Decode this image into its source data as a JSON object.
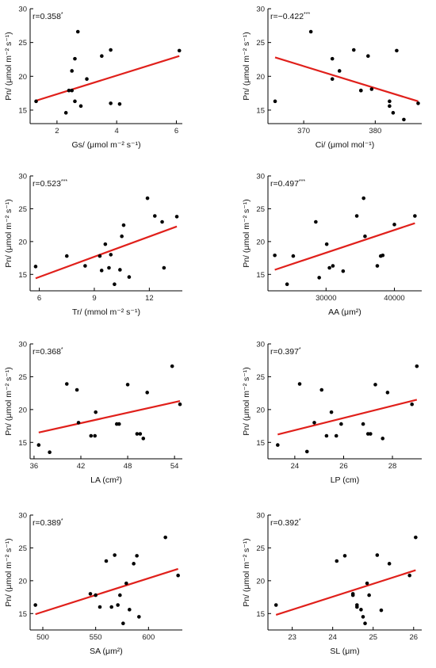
{
  "chart_data": [
    {
      "type": "scatter",
      "r_label": "r=0.358",
      "r_sig": "*",
      "xlabel": "Gs/ (μmol m⁻² s⁻¹)",
      "ylabel": "Pn/ (μmol m⁻² s⁻¹)",
      "xlim": [
        1.1,
        6.2
      ],
      "ylim": [
        13,
        30
      ],
      "xticks": [
        2,
        4,
        6
      ],
      "yticks": [
        15,
        20,
        25,
        30
      ],
      "x": [
        1.3,
        2.3,
        2.4,
        2.5,
        2.5,
        2.6,
        2.6,
        2.7,
        2.8,
        3.0,
        3.5,
        3.8,
        3.8,
        4.1,
        6.1
      ],
      "y": [
        16.3,
        14.6,
        17.9,
        20.8,
        17.9,
        22.6,
        16.3,
        26.6,
        15.6,
        19.6,
        23.0,
        23.9,
        16.0,
        15.9,
        23.8
      ],
      "fit": [
        [
          1.3,
          16.4
        ],
        [
          6.1,
          23.0
        ]
      ],
      "series_color": "#e0201b"
    },
    {
      "type": "scatter",
      "r_label": "r=−0.422",
      "r_sig": "***",
      "xlabel": "Ci/ (μmol mol⁻¹)",
      "ylabel": "Pn/ (μmol m⁻² s⁻¹)",
      "xlim": [
        365,
        386.5
      ],
      "ylim": [
        13,
        30
      ],
      "xticks": [
        370,
        380
      ],
      "yticks": [
        15,
        20,
        25,
        30
      ],
      "x": [
        366,
        371,
        374,
        374,
        375,
        377,
        378,
        378,
        379,
        379.5,
        382,
        382,
        382.5,
        383,
        384,
        386
      ],
      "y": [
        16.3,
        26.6,
        22.6,
        19.6,
        20.8,
        23.9,
        17.9,
        17.9,
        23.0,
        18.1,
        16.3,
        15.6,
        14.6,
        23.8,
        13.6,
        16.0
      ],
      "fit": [
        [
          366,
          22.8
        ],
        [
          386,
          16.3
        ]
      ],
      "series_color": "#e0201b"
    },
    {
      "type": "scatter",
      "r_label": "r=0.523",
      "r_sig": "***",
      "xlabel": "Tr/ (mmol m⁻² s⁻¹)",
      "ylabel": "Pn/ (μmol m⁻² s⁻¹)",
      "xlim": [
        5.5,
        13.8
      ],
      "ylim": [
        12.5,
        30
      ],
      "xticks": [
        6,
        9,
        12
      ],
      "yticks": [
        15,
        20,
        25,
        30
      ],
      "x": [
        5.8,
        7.5,
        8.5,
        9.3,
        9.4,
        9.6,
        9.8,
        9.9,
        10.1,
        10.4,
        10.5,
        10.6,
        10.9,
        11.9,
        12.3,
        12.7,
        12.8,
        13.5
      ],
      "y": [
        16.2,
        17.8,
        16.3,
        17.8,
        15.6,
        19.6,
        16.0,
        18.0,
        13.5,
        15.7,
        20.8,
        22.5,
        14.6,
        26.6,
        23.9,
        23.0,
        16.0,
        23.8
      ],
      "fit": [
        [
          5.8,
          14.4
        ],
        [
          13.5,
          22.3
        ]
      ],
      "series_color": "#e0201b"
    },
    {
      "type": "scatter",
      "r_label": "r=0.497",
      "r_sig": "***",
      "xlabel": "AA (μm²)",
      "ylabel": "Pn/ (μmol m⁻² s⁻¹)",
      "xlim": [
        21500,
        44000
      ],
      "ylim": [
        12.5,
        30
      ],
      "xticks": [
        30000,
        40000
      ],
      "yticks": [
        15,
        20,
        25,
        30
      ],
      "x": [
        22500,
        24300,
        25200,
        28500,
        29000,
        30100,
        30500,
        31000,
        32500,
        34500,
        35500,
        35700,
        37500,
        38000,
        38300,
        40000,
        43000
      ],
      "y": [
        17.9,
        13.5,
        17.8,
        23.0,
        14.5,
        19.6,
        16.0,
        16.3,
        15.5,
        23.9,
        26.6,
        20.8,
        16.3,
        17.8,
        17.9,
        22.6,
        23.9
      ],
      "fit": [
        [
          22500,
          15.7
        ],
        [
          43000,
          22.8
        ]
      ],
      "series_color": "#e0201b"
    },
    {
      "type": "scatter",
      "r_label": "r=0.368",
      "r_sig": "*",
      "xlabel": "LA (cm²)",
      "ylabel": "Pn/ (μmol m⁻² s⁻¹)",
      "xlim": [
        35.5,
        55
      ],
      "ylim": [
        12.5,
        30
      ],
      "xticks": [
        36,
        42,
        48,
        54
      ],
      "yticks": [
        15,
        20,
        25,
        30
      ],
      "x": [
        36.6,
        38.0,
        40.2,
        41.5,
        41.7,
        43.3,
        43.8,
        43.9,
        46.6,
        46.9,
        48.0,
        49.2,
        49.6,
        50.0,
        50.5,
        53.7,
        54.7
      ],
      "y": [
        14.6,
        13.5,
        23.9,
        23.0,
        18.0,
        16.0,
        16.0,
        19.6,
        17.8,
        17.8,
        23.8,
        16.3,
        16.3,
        15.6,
        22.6,
        26.6,
        20.8
      ],
      "fit": [
        [
          36.6,
          16.5
        ],
        [
          54.7,
          21.3
        ]
      ],
      "series_color": "#e0201b"
    },
    {
      "type": "scatter",
      "r_label": "r=0.397",
      "r_sig": "*",
      "xlabel": "LP (cm)",
      "ylabel": "Pn/ (μmol m⁻² s⁻¹)",
      "xlim": [
        22.9,
        29.2
      ],
      "ylim": [
        12.5,
        30
      ],
      "xticks": [
        24,
        26,
        28
      ],
      "yticks": [
        15,
        20,
        25,
        30
      ],
      "x": [
        23.3,
        24.2,
        24.5,
        24.8,
        25.1,
        25.3,
        25.5,
        25.7,
        25.9,
        26.8,
        27.0,
        27.1,
        27.3,
        27.6,
        27.8,
        28.8,
        29.0
      ],
      "y": [
        14.6,
        23.9,
        13.6,
        18.0,
        23.0,
        16.0,
        19.6,
        16.0,
        17.8,
        17.8,
        16.3,
        16.3,
        23.8,
        15.6,
        22.6,
        20.8,
        26.6
      ],
      "fit": [
        [
          23.3,
          16.2
        ],
        [
          29.0,
          21.5
        ]
      ],
      "series_color": "#e0201b"
    },
    {
      "type": "scatter",
      "r_label": "r=0.389",
      "r_sig": "*",
      "xlabel": "SA (μm²)",
      "ylabel": "Pn/ (μmol m⁻² s⁻¹)",
      "xlim": [
        488,
        632
      ],
      "ylim": [
        12.5,
        30
      ],
      "xticks": [
        500,
        550,
        600
      ],
      "yticks": [
        15,
        20,
        25,
        30
      ],
      "x": [
        493,
        545,
        550,
        554,
        560,
        565,
        568,
        571,
        573,
        576,
        579,
        582,
        586,
        589,
        591,
        616,
        628
      ],
      "y": [
        16.3,
        18.0,
        17.8,
        16.0,
        23.0,
        16.0,
        23.9,
        16.3,
        17.8,
        13.5,
        19.6,
        15.6,
        22.6,
        23.8,
        14.5,
        26.6,
        20.8
      ],
      "fit": [
        [
          493,
          14.9
        ],
        [
          628,
          21.8
        ]
      ],
      "series_color": "#e0201b"
    },
    {
      "type": "scatter",
      "r_label": "r=0.392",
      "r_sig": "*",
      "xlabel": "SL (μm)",
      "ylabel": "Pn/ (μmol m⁻² s⁻¹)",
      "xlim": [
        22.4,
        26.2
      ],
      "ylim": [
        12.5,
        30
      ],
      "xticks": [
        23,
        24,
        25,
        26
      ],
      "yticks": [
        15,
        20,
        25,
        30
      ],
      "x": [
        22.6,
        24.1,
        24.3,
        24.5,
        24.5,
        24.6,
        24.6,
        24.7,
        24.75,
        24.8,
        24.85,
        24.9,
        25.1,
        25.2,
        25.4,
        25.9,
        26.05
      ],
      "y": [
        16.3,
        23.0,
        23.8,
        18.0,
        17.8,
        16.0,
        16.3,
        15.6,
        14.5,
        13.5,
        19.6,
        17.8,
        23.9,
        15.5,
        22.6,
        20.8,
        26.6
      ],
      "fit": [
        [
          22.6,
          14.8
        ],
        [
          26.05,
          21.6
        ]
      ],
      "series_color": "#e0201b"
    }
  ]
}
